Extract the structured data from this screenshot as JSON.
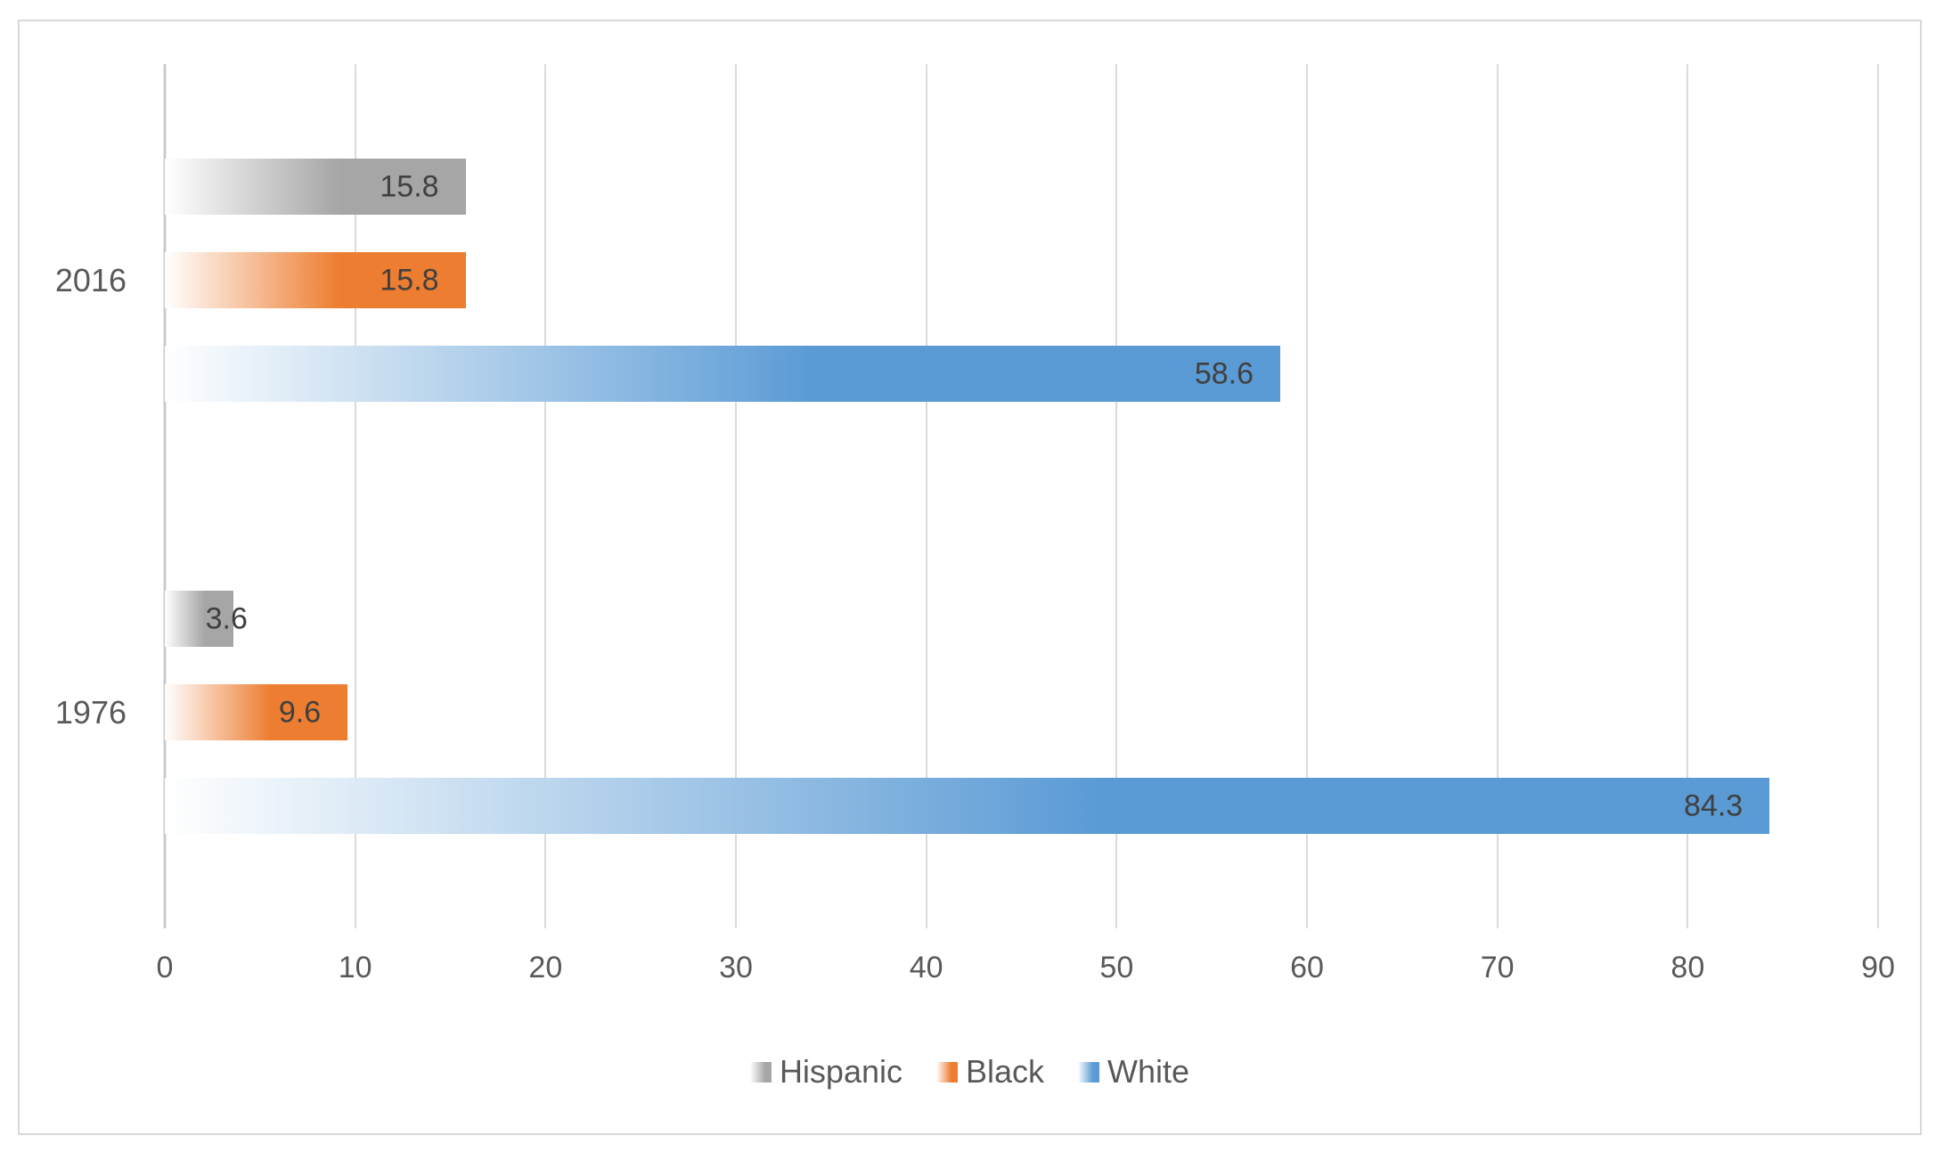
{
  "chart": {
    "background": "#FFFFFF",
    "frame_border_color": "#D9D9D9"
  },
  "chart_data": {
    "type": "bar",
    "orientation": "horizontal",
    "title": "",
    "xlabel": "",
    "ylabel": "",
    "categories": [
      "2016",
      "1976"
    ],
    "series": [
      {
        "name": "Hispanic",
        "color": "#A6A6A6",
        "values": [
          15.8,
          3.6
        ]
      },
      {
        "name": "Black",
        "color": "#ED7D31",
        "values": [
          15.8,
          9.6
        ]
      },
      {
        "name": "White",
        "color": "#5B9BD5",
        "values": [
          58.6,
          84.3
        ]
      }
    ],
    "xlim": [
      0,
      90
    ],
    "x_ticks": [
      "0",
      "10",
      "20",
      "30",
      "40",
      "50",
      "60",
      "70",
      "80",
      "90"
    ],
    "grid": "vertical-gridlines-only",
    "legend_position": "bottom",
    "data_labels": "inside-end-one-decimal",
    "gradient_fill": "white-to-color-left-to-right",
    "colors": {
      "gridline": "#DBDBDB",
      "axis_line": "#CBCBCB",
      "tick_text": "#595959",
      "category_text": "#595959",
      "value_text": "#404040",
      "legend_text": "#595959"
    }
  }
}
